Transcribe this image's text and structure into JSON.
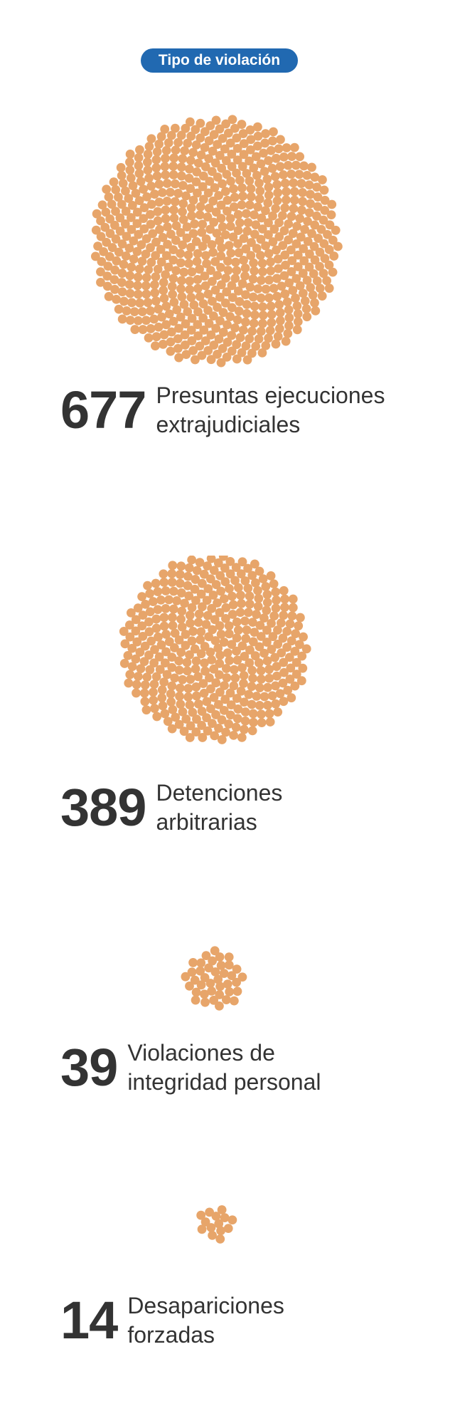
{
  "header": {
    "badge_label": "Tipo de violación"
  },
  "colors": {
    "badge": "#2169b1",
    "dot": "#e7a56a",
    "text": "#333333"
  },
  "chart_data": {
    "type": "unit-bubble",
    "title": "Tipo de violación",
    "unit": "one dot per case",
    "categories": [
      {
        "value": 677,
        "label_lines": [
          "Presuntas ejecuciones",
          "extrajudiciales"
        ]
      },
      {
        "value": 389,
        "label_lines": [
          "Detenciones",
          "arbitrarias"
        ]
      },
      {
        "value": 39,
        "label_lines": [
          "Violaciones de",
          "integridad personal"
        ]
      },
      {
        "value": 14,
        "label_lines": [
          "Desapariciones",
          "forzadas"
        ]
      }
    ]
  }
}
